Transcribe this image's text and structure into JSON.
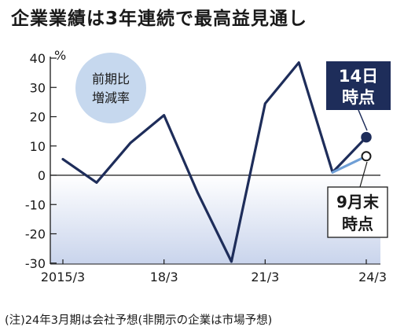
{
  "title": "企業業績は3年連続で最高益見通し",
  "footnote": "(注)24年3月期は会社予想(非開示の企業は市場予想)",
  "colors": {
    "line": "#1e2d5a",
    "forecast_sept": "#6f9fd6",
    "shade_top": "#ffffff",
    "shade_bottom": "#c9d4ec",
    "badge": "#c6d8ee",
    "callout_dark": "#1e2d5a"
  },
  "chart_data": {
    "type": "line",
    "title": "企業業績は3年連続で最高益見通し",
    "ylabel": "%",
    "ylim": [
      -35,
      40
    ],
    "yticks": [
      40,
      30,
      20,
      10,
      0,
      -10,
      -20,
      -30
    ],
    "ytick_labels": [
      "40",
      "30",
      "20",
      "10",
      "0",
      "-10",
      "-20",
      "-30"
    ],
    "xlim": [
      2015,
      2024
    ],
    "xticks": [
      2015,
      2018,
      2021,
      2024
    ],
    "xtick_labels": [
      "2015/3",
      "18/3",
      "21/3",
      "24/3"
    ],
    "grid": false,
    "badge": [
      "前期比",
      "増減率"
    ],
    "series": [
      {
        "x": [
          2015,
          2016,
          2017,
          2018,
          2019,
          2020,
          2021,
          2022,
          2023,
          2024
        ],
        "values": [
          5.5,
          -2.5,
          11,
          20.5,
          -6,
          -29.5,
          24.5,
          38.5,
          1,
          13
        ]
      },
      {
        "x": [
          2023,
          2024
        ],
        "values": [
          1,
          6.5
        ]
      }
    ],
    "annotations": [
      {
        "label_lines": [
          "14日",
          "時点"
        ],
        "x": 2024,
        "value": 13
      },
      {
        "label_lines": [
          "9月末",
          "時点"
        ],
        "x": 2024,
        "value": 6.5
      }
    ]
  }
}
